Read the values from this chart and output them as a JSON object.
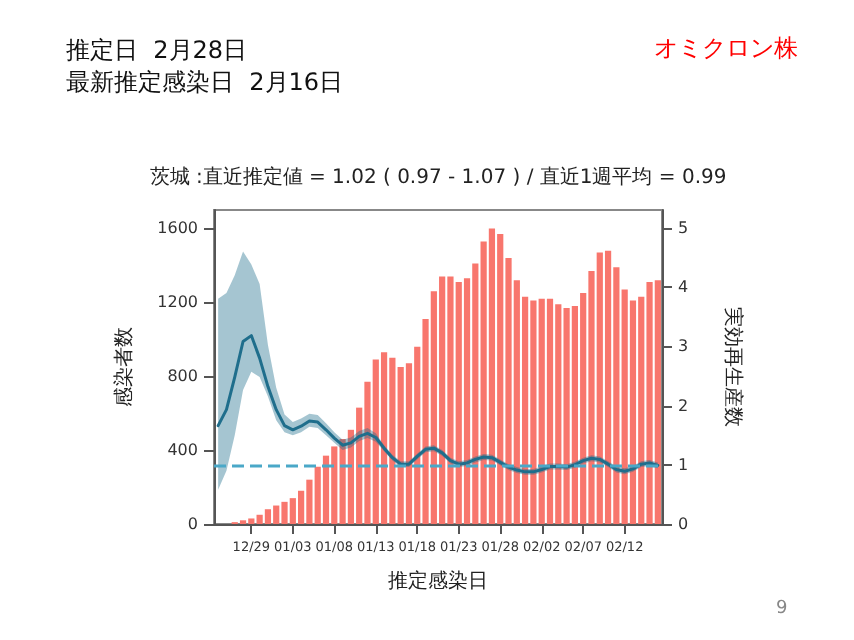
{
  "chart_data": {
    "type": "bar",
    "title": "推定日  2月28日",
    "subtitle": "最新推定感染日  2月16日",
    "annotations": [
      "オミクロン株",
      "茨城 :直近推定値 = 1.02 ( 0.97 - 1.07 ) / 直近1週平均 = 0.99",
      "9"
    ],
    "xlabel": "推定感染日",
    "ylabel": "感染者数",
    "y2label": "実効再生産数",
    "categories": [
      null,
      null,
      null,
      null,
      "12/29",
      null,
      null,
      null,
      null,
      "01/03",
      null,
      null,
      null,
      null,
      "01/08",
      null,
      null,
      null,
      null,
      "01/13",
      null,
      null,
      null,
      null,
      "01/18",
      null,
      null,
      null,
      null,
      "01/23",
      null,
      null,
      null,
      null,
      "01/28",
      null,
      null,
      null,
      null,
      "02/02",
      null,
      null,
      null,
      null,
      "02/07",
      null,
      null,
      null,
      null,
      "02/12",
      null,
      null,
      null,
      null
    ],
    "series": [
      {
        "color": "#f8766d",
        "values": [
          0,
          0,
          10,
          20,
          30,
          50,
          80,
          100,
          120,
          140,
          180,
          240,
          310,
          370,
          420,
          460,
          510,
          630,
          770,
          890,
          930,
          900,
          850,
          870,
          960,
          1110,
          1260,
          1340,
          1340,
          1310,
          1330,
          1410,
          1530,
          1600,
          1570,
          1440,
          1320,
          1230,
          1210,
          1220,
          1220,
          1190,
          1170,
          1180,
          1250,
          1370,
          1470,
          1480,
          1390,
          1270,
          1210,
          1230,
          1310,
          1320
        ]
      },
      {
        "type": "line",
        "axis": "y2",
        "color": "#1f6e8c",
        "line_style": "solid",
        "marker": "none",
        "values": [
          1.66,
          1.93,
          2.48,
          3.08,
          3.18,
          2.8,
          2.32,
          1.93,
          1.66,
          1.59,
          1.65,
          1.74,
          1.72,
          1.59,
          1.45,
          1.33,
          1.37,
          1.48,
          1.53,
          1.46,
          1.28,
          1.12,
          1.01,
          1.01,
          1.14,
          1.26,
          1.28,
          1.2,
          1.07,
          1.01,
          1.03,
          1.09,
          1.13,
          1.12,
          1.04,
          0.96,
          0.91,
          0.88,
          0.88,
          0.92,
          0.97,
          0.97,
          0.96,
          1.0,
          1.07,
          1.11,
          1.09,
          1.01,
          0.92,
          0.89,
          0.93,
          1.01,
          1.03,
          0.99
        ],
        "lower": [
          0.58,
          0.9,
          1.5,
          2.26,
          2.57,
          2.48,
          2.15,
          1.75,
          1.55,
          1.5,
          1.55,
          1.64,
          1.62,
          1.5,
          1.37,
          1.25,
          1.29,
          1.4,
          1.45,
          1.39,
          1.23,
          1.07,
          0.96,
          0.96,
          1.09,
          1.21,
          1.23,
          1.15,
          1.02,
          0.96,
          0.98,
          1.04,
          1.08,
          1.07,
          0.99,
          0.91,
          0.86,
          0.83,
          0.83,
          0.87,
          0.92,
          0.92,
          0.91,
          0.95,
          1.02,
          1.06,
          1.04,
          0.96,
          0.87,
          0.84,
          0.88,
          0.96,
          0.98,
          0.94
        ],
        "upper": [
          3.8,
          3.9,
          4.2,
          4.6,
          4.38,
          4.05,
          3.02,
          2.3,
          1.85,
          1.72,
          1.78,
          1.86,
          1.84,
          1.7,
          1.55,
          1.42,
          1.46,
          1.57,
          1.62,
          1.53,
          1.33,
          1.17,
          1.06,
          1.06,
          1.19,
          1.31,
          1.33,
          1.25,
          1.12,
          1.06,
          1.08,
          1.14,
          1.18,
          1.17,
          1.09,
          1.01,
          0.96,
          0.93,
          0.93,
          0.97,
          1.02,
          1.02,
          1.01,
          1.05,
          1.12,
          1.16,
          1.14,
          1.06,
          0.97,
          0.94,
          0.98,
          1.06,
          1.08,
          1.04
        ]
      }
    ],
    "ref_lines": [
      {
        "axis": "y2",
        "value": 1,
        "color": "#4aa8c8",
        "line_style": "dashed"
      }
    ],
    "ylim": [
      0,
      1700
    ],
    "yticks": [
      0,
      400,
      800,
      1200,
      1600
    ],
    "y2lim": [
      0,
      5.3
    ],
    "y2ticks": [
      0,
      1,
      2,
      3,
      4,
      5
    ],
    "grid": false
  }
}
